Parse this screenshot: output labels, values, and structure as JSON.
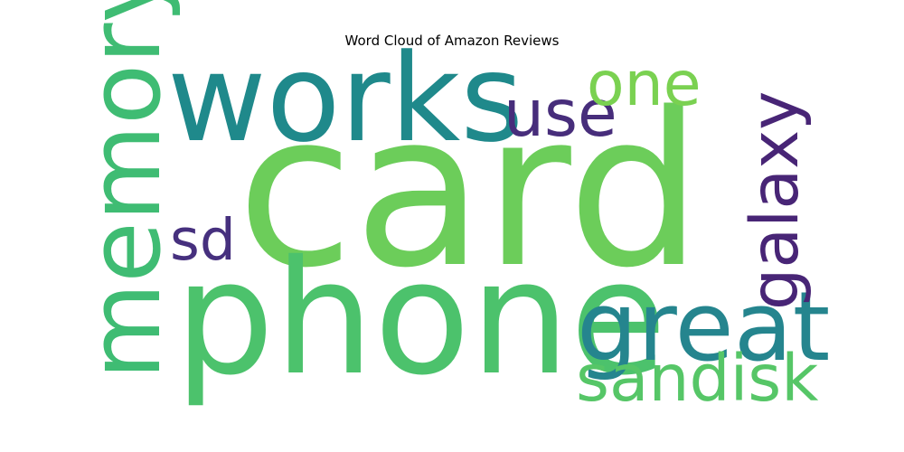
{
  "chart_data": {
    "type": "wordcloud",
    "title": "Word Cloud of Amazon Reviews",
    "words": [
      {
        "text": "card",
        "weight": 1.0,
        "color": "#6ccd5a",
        "orientation": "horizontal"
      },
      {
        "text": "phone",
        "weight": 0.74,
        "color": "#4cc26c",
        "orientation": "horizontal"
      },
      {
        "text": "works",
        "weight": 0.57,
        "color": "#1f898b",
        "orientation": "horizontal"
      },
      {
        "text": "memory",
        "weight": 0.47,
        "color": "#3fbc73",
        "orientation": "vertical"
      },
      {
        "text": "great",
        "weight": 0.45,
        "color": "#25858e",
        "orientation": "horizontal"
      },
      {
        "text": "galaxy",
        "weight": 0.31,
        "color": "#482576",
        "orientation": "vertical"
      },
      {
        "text": "sandisk",
        "weight": 0.3,
        "color": "#56c667",
        "orientation": "horizontal"
      },
      {
        "text": "use",
        "weight": 0.3,
        "color": "#472d7b",
        "orientation": "horizontal"
      },
      {
        "text": "one",
        "weight": 0.29,
        "color": "#7ad151",
        "orientation": "horizontal"
      },
      {
        "text": "sd",
        "weight": 0.27,
        "color": "#46307e",
        "orientation": "horizontal"
      }
    ]
  }
}
